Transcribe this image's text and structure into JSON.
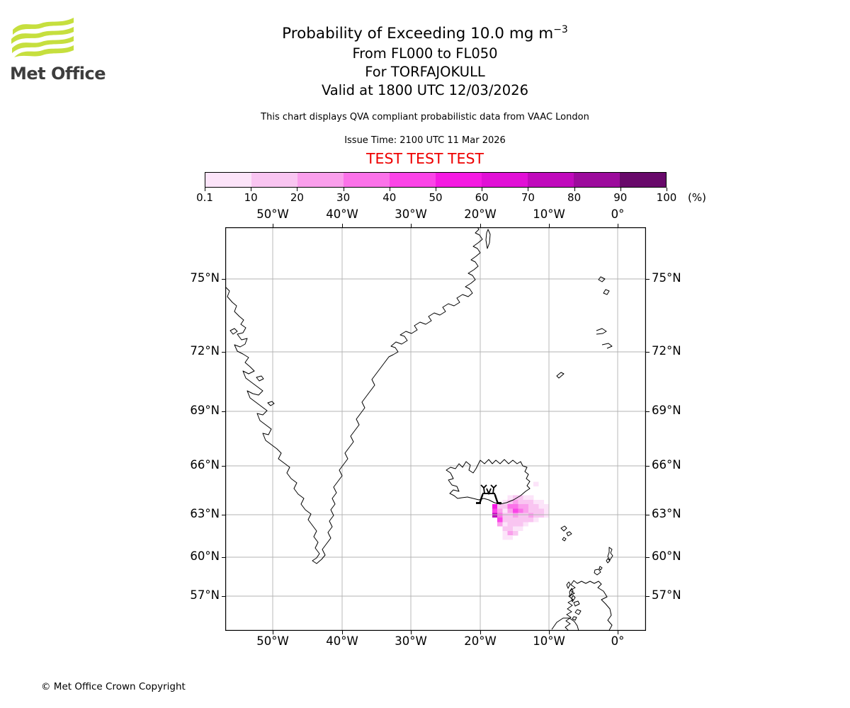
{
  "logo": {
    "brand": "Met Office",
    "wave_color": "#c6df3e"
  },
  "header": {
    "title": "Probability of Exceeding 10.0 mg m",
    "title_superscript": "−3",
    "subtitle_lines": [
      "From FL000 to FL050",
      "For TORFAJOKULL",
      "Valid at 1800 UTC 12/03/2026"
    ],
    "note": "This chart displays QVA compliant probabilistic data from VAAC London",
    "issue_time": "Issue Time: 2100 UTC 11 Mar 2026",
    "test_banner": "TEST TEST TEST",
    "test_color": "#ee0000"
  },
  "colorbar": {
    "tick_labels": [
      "0.1",
      "10",
      "20",
      "30",
      "40",
      "50",
      "60",
      "70",
      "80",
      "90",
      "100"
    ],
    "unit_label": "(%)",
    "colors": [
      "#fce4f9",
      "#f9c5f1",
      "#fa9fec",
      "#fb72e9",
      "#fb44e7",
      "#f51ae2",
      "#e110d6",
      "#c00abc",
      "#9c0b9c",
      "#68096a"
    ]
  },
  "map": {
    "lon_labels": [
      "50°W",
      "40°W",
      "30°W",
      "20°W",
      "10°W",
      "0°"
    ],
    "lat_labels": [
      "75°N",
      "72°N",
      "69°N",
      "66°N",
      "63°N",
      "60°N",
      "57°N"
    ],
    "volcano_symbol": "vaac-eruption-symbol",
    "gridline_color": "#b3b3b3"
  },
  "footer": {
    "copyright": "© Met Office Crown Copyright"
  },
  "chart_data": {
    "type": "heatmap",
    "title": "Probability of Exceeding 10.0 mg m−3 from FL000 to FL050 for TORFAJOKULL, valid 1800 UTC 12/03/2026",
    "projection": "mercator",
    "map_extent": {
      "lon_min_deg": -56.8,
      "lon_max_deg": 4.1,
      "lat_min_deg": 54.3,
      "lat_max_deg": 77.1
    },
    "x_ticks_lon_deg": [
      -50,
      -40,
      -30,
      -20,
      -10,
      0
    ],
    "y_ticks_lat_deg": [
      75,
      72,
      69,
      66,
      63,
      60,
      57
    ],
    "legend_bins_percent": [
      "0.1-10",
      "10-20",
      "20-30",
      "30-40",
      "40-50",
      "50-60",
      "60-70",
      "70-80",
      "80-90",
      "90-100"
    ],
    "bin_colors": [
      "#fce4f9",
      "#f9c5f1",
      "#fa9fec",
      "#fb72e9",
      "#fb44e7",
      "#f51ae2",
      "#e110d6",
      "#c00abc",
      "#9c0b9c",
      "#68096a"
    ],
    "volcano": {
      "name": "TORFAJOKULL",
      "approx_lon_deg": -19.0,
      "approx_lat_deg": 63.9
    },
    "cell_grid": {
      "origin_lon_deg": -18.9,
      "origin_lat_deg": 64.05,
      "dlon_deg": 0.75,
      "dlat_deg": -0.27
    },
    "cells": [
      [
        9,
        -3,
        1
      ],
      [
        4,
        0,
        1
      ],
      [
        5,
        0,
        2
      ],
      [
        6,
        0,
        2
      ],
      [
        7,
        0,
        1
      ],
      [
        8,
        0,
        1
      ],
      [
        3,
        1,
        1
      ],
      [
        4,
        1,
        2
      ],
      [
        5,
        1,
        3
      ],
      [
        6,
        1,
        2
      ],
      [
        7,
        1,
        2
      ],
      [
        8,
        1,
        2
      ],
      [
        9,
        1,
        1
      ],
      [
        10,
        1,
        1
      ],
      [
        1,
        2,
        6
      ],
      [
        2,
        2,
        2
      ],
      [
        3,
        2,
        2
      ],
      [
        4,
        2,
        4
      ],
      [
        5,
        2,
        4
      ],
      [
        6,
        2,
        3
      ],
      [
        7,
        2,
        3
      ],
      [
        8,
        2,
        2
      ],
      [
        9,
        2,
        2
      ],
      [
        10,
        2,
        1
      ],
      [
        11,
        2,
        1
      ],
      [
        1,
        3,
        5
      ],
      [
        2,
        3,
        3
      ],
      [
        3,
        3,
        1
      ],
      [
        4,
        3,
        3
      ],
      [
        5,
        3,
        5
      ],
      [
        6,
        3,
        4
      ],
      [
        7,
        3,
        3
      ],
      [
        8,
        3,
        2
      ],
      [
        9,
        3,
        2
      ],
      [
        10,
        3,
        2
      ],
      [
        11,
        3,
        1
      ],
      [
        1,
        4,
        8
      ],
      [
        2,
        4,
        4
      ],
      [
        3,
        4,
        2
      ],
      [
        4,
        4,
        2
      ],
      [
        5,
        4,
        3
      ],
      [
        6,
        4,
        2
      ],
      [
        7,
        4,
        2
      ],
      [
        8,
        4,
        3
      ],
      [
        9,
        4,
        2
      ],
      [
        10,
        4,
        2
      ],
      [
        11,
        4,
        1
      ],
      [
        2,
        5,
        5
      ],
      [
        3,
        5,
        2
      ],
      [
        4,
        5,
        2
      ],
      [
        5,
        5,
        2
      ],
      [
        6,
        5,
        2
      ],
      [
        7,
        5,
        2
      ],
      [
        8,
        5,
        2
      ],
      [
        9,
        5,
        1
      ],
      [
        2,
        6,
        3
      ],
      [
        3,
        6,
        1
      ],
      [
        4,
        6,
        2
      ],
      [
        5,
        6,
        2
      ],
      [
        6,
        6,
        2
      ],
      [
        7,
        6,
        1
      ],
      [
        3,
        7,
        2
      ],
      [
        4,
        7,
        2
      ],
      [
        5,
        7,
        1
      ],
      [
        6,
        7,
        1
      ],
      [
        3,
        8,
        1
      ],
      [
        4,
        8,
        3
      ],
      [
        5,
        8,
        2
      ],
      [
        3,
        9,
        1
      ],
      [
        4,
        9,
        1
      ]
    ]
  }
}
